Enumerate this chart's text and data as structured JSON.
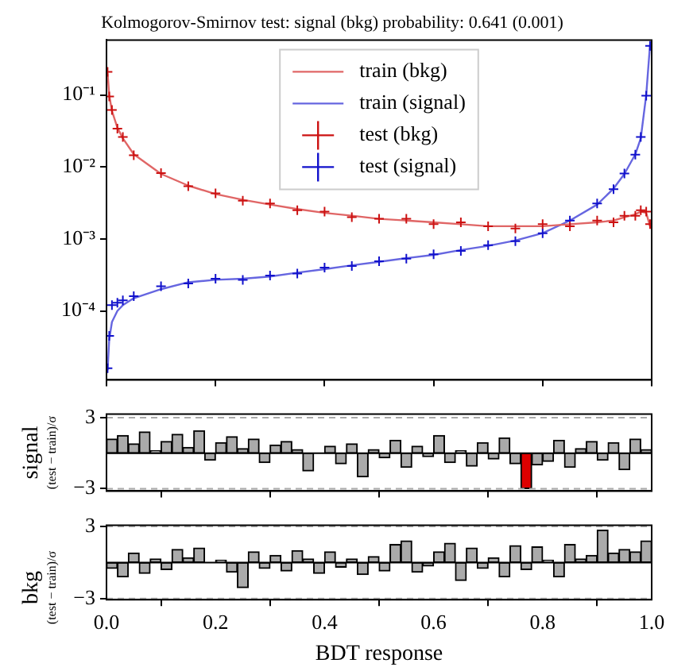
{
  "chart_data": [
    {
      "type": "line",
      "title": "Kolmogorov-Smirnov test: signal (bkg) probability: 0.641 (0.001)",
      "log": "y",
      "legend": "top",
      "grid": false,
      "tick_labels": "y",
      "xlim": [
        0,
        1
      ],
      "xticks": [
        0,
        0.2,
        0.4,
        0.6,
        0.8,
        1
      ],
      "ylim": [
        1.1e-05,
        0.58
      ],
      "yticks": [
        {
          "value": 0.0001,
          "label": "10⁻⁴"
        },
        {
          "value": 0.001,
          "label": "10⁻³"
        },
        {
          "value": 0.01,
          "label": "10⁻²"
        },
        {
          "value": 0.1,
          "label": "10⁻¹"
        }
      ],
      "x": [
        0.002,
        0.005,
        0.01,
        0.02,
        0.03,
        0.05,
        0.1,
        0.15,
        0.2,
        0.25,
        0.3,
        0.35,
        0.4,
        0.45,
        0.5,
        0.55,
        0.6,
        0.65,
        0.7,
        0.75,
        0.8,
        0.85,
        0.9,
        0.93,
        0.95,
        0.97,
        0.98,
        0.99,
        0.997
      ],
      "series": [
        {
          "name": "train (bkg)",
          "type": "line",
          "color": "#e06666",
          "values": [
            0.2,
            0.1,
            0.06,
            0.035,
            0.025,
            0.015,
            0.008,
            0.0055,
            0.0042,
            0.0035,
            0.003,
            0.0026,
            0.0023,
            0.0021,
            0.0019,
            0.0018,
            0.0017,
            0.0016,
            0.0015,
            0.0015,
            0.0015,
            0.0016,
            0.0017,
            0.0018,
            0.002,
            0.0022,
            0.0024,
            0.0023,
            0.0015
          ]
        },
        {
          "name": "train (signal)",
          "type": "line",
          "color": "#6666e0",
          "values": [
            1.5e-05,
            4e-05,
            7e-05,
            0.0001,
            0.00012,
            0.00015,
            0.0002,
            0.00025,
            0.00027,
            0.00028,
            0.0003,
            0.00034,
            0.00038,
            0.00043,
            0.00048,
            0.00054,
            0.0006,
            0.0007,
            0.0008,
            0.00095,
            0.0012,
            0.0018,
            0.003,
            0.005,
            0.008,
            0.015,
            0.025,
            0.1,
            0.5
          ]
        },
        {
          "name": "test (bkg)",
          "type": "scatter",
          "marker": "cross",
          "color": "#cc1111",
          "values": [
            0.21,
            0.095,
            0.062,
            0.034,
            0.026,
            0.0145,
            0.0082,
            0.0054,
            0.0043,
            0.0034,
            0.0031,
            0.0025,
            0.0024,
            0.002,
            0.0019,
            0.0019,
            0.0016,
            0.0017,
            0.0015,
            0.0014,
            0.0016,
            0.0015,
            0.0018,
            0.0017,
            0.0021,
            0.0021,
            0.0025,
            0.0024,
            0.0016
          ]
        },
        {
          "name": "test (signal)",
          "type": "scatter",
          "marker": "cross",
          "color": "#1111cc",
          "values": [
            1.6e-05,
            4.5e-05,
            0.00012,
            0.00013,
            0.00014,
            0.00016,
            0.00022,
            0.00024,
            0.00028,
            0.00027,
            0.00031,
            0.00033,
            0.0004,
            0.00042,
            0.00049,
            0.00053,
            0.00061,
            0.00068,
            0.00082,
            0.00093,
            0.0012,
            0.0018,
            0.0031,
            0.0049,
            0.0081,
            0.0148,
            0.026,
            0.098,
            0.48
          ]
        }
      ]
    },
    {
      "type": "histogram",
      "ylabel": "signal\n(test − train)/σ",
      "grid": false,
      "tick_labels": "y",
      "xlim": [
        0,
        1
      ],
      "xticks": [
        0,
        0.2,
        0.4,
        0.6,
        0.8,
        1
      ],
      "ylim": [
        -3.2,
        3.3
      ],
      "yticks": [
        {
          "value": -3,
          "label": "−3"
        },
        3
      ],
      "ref_lines": [
        {
          "axis": "y",
          "value": 3,
          "color": "#aaaaaa",
          "line_style": "dashed"
        },
        {
          "axis": "y",
          "value": -3,
          "color": "#aaaaaa",
          "line_style": "dashed"
        },
        {
          "axis": "y",
          "value": 0,
          "color": "#000000",
          "line_style": "solid"
        }
      ],
      "bins": [
        0,
        0.02,
        0.04,
        0.06,
        0.08,
        0.1,
        0.12,
        0.14,
        0.16,
        0.18,
        0.2,
        0.22,
        0.24,
        0.26,
        0.28,
        0.3,
        0.32,
        0.34,
        0.36,
        0.38,
        0.4,
        0.42,
        0.44,
        0.46,
        0.48,
        0.5,
        0.52,
        0.54,
        0.56,
        0.58,
        0.6,
        0.62,
        0.64,
        0.66,
        0.68,
        0.7,
        0.72,
        0.74,
        0.76,
        0.78,
        0.8,
        0.82,
        0.84,
        0.86,
        0.88,
        0.9,
        0.92,
        0.94,
        0.96,
        0.98,
        1
      ],
      "values": [
        1.2,
        1.5,
        0.8,
        1.8,
        0.2,
        1.0,
        1.6,
        0.5,
        1.9,
        -0.6,
        0.9,
        1.4,
        0.4,
        1.2,
        -0.8,
        0.7,
        1.0,
        0.3,
        -1.5,
        0.0,
        0.6,
        -0.9,
        0.8,
        -2.0,
        0.3,
        -0.4,
        1.1,
        -1.2,
        0.6,
        -0.3,
        1.5,
        -0.8,
        0.2,
        -1.1,
        0.9,
        -0.5,
        1.3,
        -0.9,
        -3.0,
        -1.0,
        -0.7,
        1.1,
        -1.2,
        0.4,
        1.0,
        -0.6,
        0.9,
        -1.4,
        1.2,
        0.3
      ],
      "colors": [
        "#aaaaaa",
        "#aaaaaa",
        "#aaaaaa",
        "#aaaaaa",
        "#aaaaaa",
        "#aaaaaa",
        "#aaaaaa",
        "#aaaaaa",
        "#aaaaaa",
        "#aaaaaa",
        "#aaaaaa",
        "#aaaaaa",
        "#aaaaaa",
        "#aaaaaa",
        "#aaaaaa",
        "#aaaaaa",
        "#aaaaaa",
        "#aaaaaa",
        "#aaaaaa",
        "#aaaaaa",
        "#aaaaaa",
        "#aaaaaa",
        "#aaaaaa",
        "#aaaaaa",
        "#aaaaaa",
        "#aaaaaa",
        "#aaaaaa",
        "#aaaaaa",
        "#aaaaaa",
        "#aaaaaa",
        "#aaaaaa",
        "#aaaaaa",
        "#aaaaaa",
        "#aaaaaa",
        "#aaaaaa",
        "#aaaaaa",
        "#aaaaaa",
        "#aaaaaa",
        "#dd0000",
        "#aaaaaa",
        "#aaaaaa",
        "#aaaaaa",
        "#aaaaaa",
        "#aaaaaa",
        "#aaaaaa",
        "#aaaaaa",
        "#aaaaaa",
        "#aaaaaa",
        "#aaaaaa",
        "#aaaaaa"
      ]
    },
    {
      "type": "histogram",
      "ylabel": "bkg\n(test − train)/σ",
      "xlabel": "BDT response",
      "grid": false,
      "color": "#aaaaaa",
      "xlim": [
        0,
        1
      ],
      "xticks": [
        {
          "value": 0,
          "label": "0.0"
        },
        0.2,
        0.4,
        0.6,
        0.8,
        {
          "value": 1,
          "label": "1.0"
        }
      ],
      "ylim": [
        -3.1,
        3.1
      ],
      "yticks": [
        {
          "value": -3,
          "label": "−3"
        },
        3
      ],
      "ref_lines": [
        {
          "axis": "y",
          "value": 3,
          "color": "#aaaaaa",
          "line_style": "dashed"
        },
        {
          "axis": "y",
          "value": -3,
          "color": "#aaaaaa",
          "line_style": "dashed"
        },
        {
          "axis": "y",
          "value": 0,
          "color": "#000000",
          "line_style": "solid"
        }
      ],
      "bins": [
        0,
        0.02,
        0.04,
        0.06,
        0.08,
        0.1,
        0.12,
        0.14,
        0.16,
        0.18,
        0.2,
        0.22,
        0.24,
        0.26,
        0.28,
        0.3,
        0.32,
        0.34,
        0.36,
        0.38,
        0.4,
        0.42,
        0.44,
        0.46,
        0.48,
        0.5,
        0.52,
        0.54,
        0.56,
        0.58,
        0.6,
        0.62,
        0.64,
        0.66,
        0.68,
        0.7,
        0.72,
        0.74,
        0.76,
        0.78,
        0.8,
        0.82,
        0.84,
        0.86,
        0.88,
        0.9,
        0.92,
        0.94,
        0.96,
        0.98,
        1
      ],
      "values": [
        -0.5,
        -1.2,
        0.8,
        -0.9,
        0.3,
        -0.6,
        1.1,
        0.4,
        1.2,
        0.0,
        0.2,
        -0.8,
        -2.1,
        0.9,
        -0.5,
        0.6,
        -0.7,
        1.0,
        0.3,
        -0.9,
        0.9,
        -0.4,
        0.3,
        -1.0,
        0.5,
        -0.7,
        1.5,
        1.8,
        -0.8,
        -0.3,
        0.9,
        1.6,
        -1.5,
        1.2,
        -0.5,
        0.4,
        -1.2,
        1.4,
        -0.6,
        1.3,
        0.2,
        -1.2,
        1.5,
        0.3,
        0.6,
        2.7,
        0.8,
        1.1,
        0.9,
        1.8
      ]
    }
  ]
}
